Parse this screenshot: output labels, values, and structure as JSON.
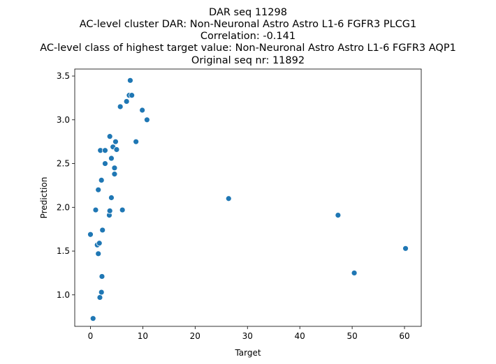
{
  "chart_data": {
    "type": "scatter",
    "title_lines": [
      "DAR seq 11298",
      "AC-level cluster DAR: Non-Neuronal Astro Astro L1-6 FGFR3 PLCG1",
      "Correlation: -0.141",
      "AC-level class of highest target value: Non-Neuronal Astro Astro L1-6 FGFR3 AQP1",
      "Original seq nr: 11892"
    ],
    "xlabel": "Target",
    "ylabel": "Prediction",
    "xlim": [
      -3.0,
      63.2
    ],
    "ylim": [
      0.64,
      3.58
    ],
    "xticks": [
      0,
      10,
      20,
      30,
      40,
      50,
      60
    ],
    "yticks": [
      1.0,
      1.5,
      2.0,
      2.5,
      3.0,
      3.5
    ],
    "xtick_labels": [
      "0",
      "10",
      "20",
      "30",
      "40",
      "50",
      "60"
    ],
    "ytick_labels": [
      "1.0",
      "1.5",
      "2.0",
      "2.5",
      "3.0",
      "3.5"
    ],
    "grid": false,
    "marker_color": "#1f77b4",
    "points": [
      {
        "x": 0.0,
        "y": 1.69
      },
      {
        "x": 0.5,
        "y": 0.73
      },
      {
        "x": 1.0,
        "y": 1.97
      },
      {
        "x": 1.3,
        "y": 1.57
      },
      {
        "x": 1.5,
        "y": 1.47
      },
      {
        "x": 1.5,
        "y": 2.2
      },
      {
        "x": 1.7,
        "y": 1.59
      },
      {
        "x": 1.8,
        "y": 0.97
      },
      {
        "x": 1.9,
        "y": 2.65
      },
      {
        "x": 2.1,
        "y": 1.03
      },
      {
        "x": 2.1,
        "y": 2.31
      },
      {
        "x": 2.2,
        "y": 1.21
      },
      {
        "x": 2.3,
        "y": 1.74
      },
      {
        "x": 2.8,
        "y": 2.5
      },
      {
        "x": 2.8,
        "y": 2.65
      },
      {
        "x": 3.6,
        "y": 1.91
      },
      {
        "x": 3.7,
        "y": 1.96
      },
      {
        "x": 3.7,
        "y": 2.81
      },
      {
        "x": 4.0,
        "y": 2.56
      },
      {
        "x": 4.0,
        "y": 2.11
      },
      {
        "x": 4.3,
        "y": 2.69
      },
      {
        "x": 4.6,
        "y": 2.38
      },
      {
        "x": 4.6,
        "y": 2.45
      },
      {
        "x": 4.8,
        "y": 2.75
      },
      {
        "x": 5.0,
        "y": 2.66
      },
      {
        "x": 5.7,
        "y": 3.15
      },
      {
        "x": 6.1,
        "y": 1.97
      },
      {
        "x": 6.9,
        "y": 3.21
      },
      {
        "x": 7.4,
        "y": 3.28
      },
      {
        "x": 7.6,
        "y": 3.45
      },
      {
        "x": 7.9,
        "y": 3.28
      },
      {
        "x": 8.7,
        "y": 2.75
      },
      {
        "x": 9.9,
        "y": 3.11
      },
      {
        "x": 10.8,
        "y": 3.0
      },
      {
        "x": 26.4,
        "y": 2.1
      },
      {
        "x": 47.3,
        "y": 1.91
      },
      {
        "x": 50.4,
        "y": 1.25
      },
      {
        "x": 60.2,
        "y": 1.53
      }
    ]
  }
}
